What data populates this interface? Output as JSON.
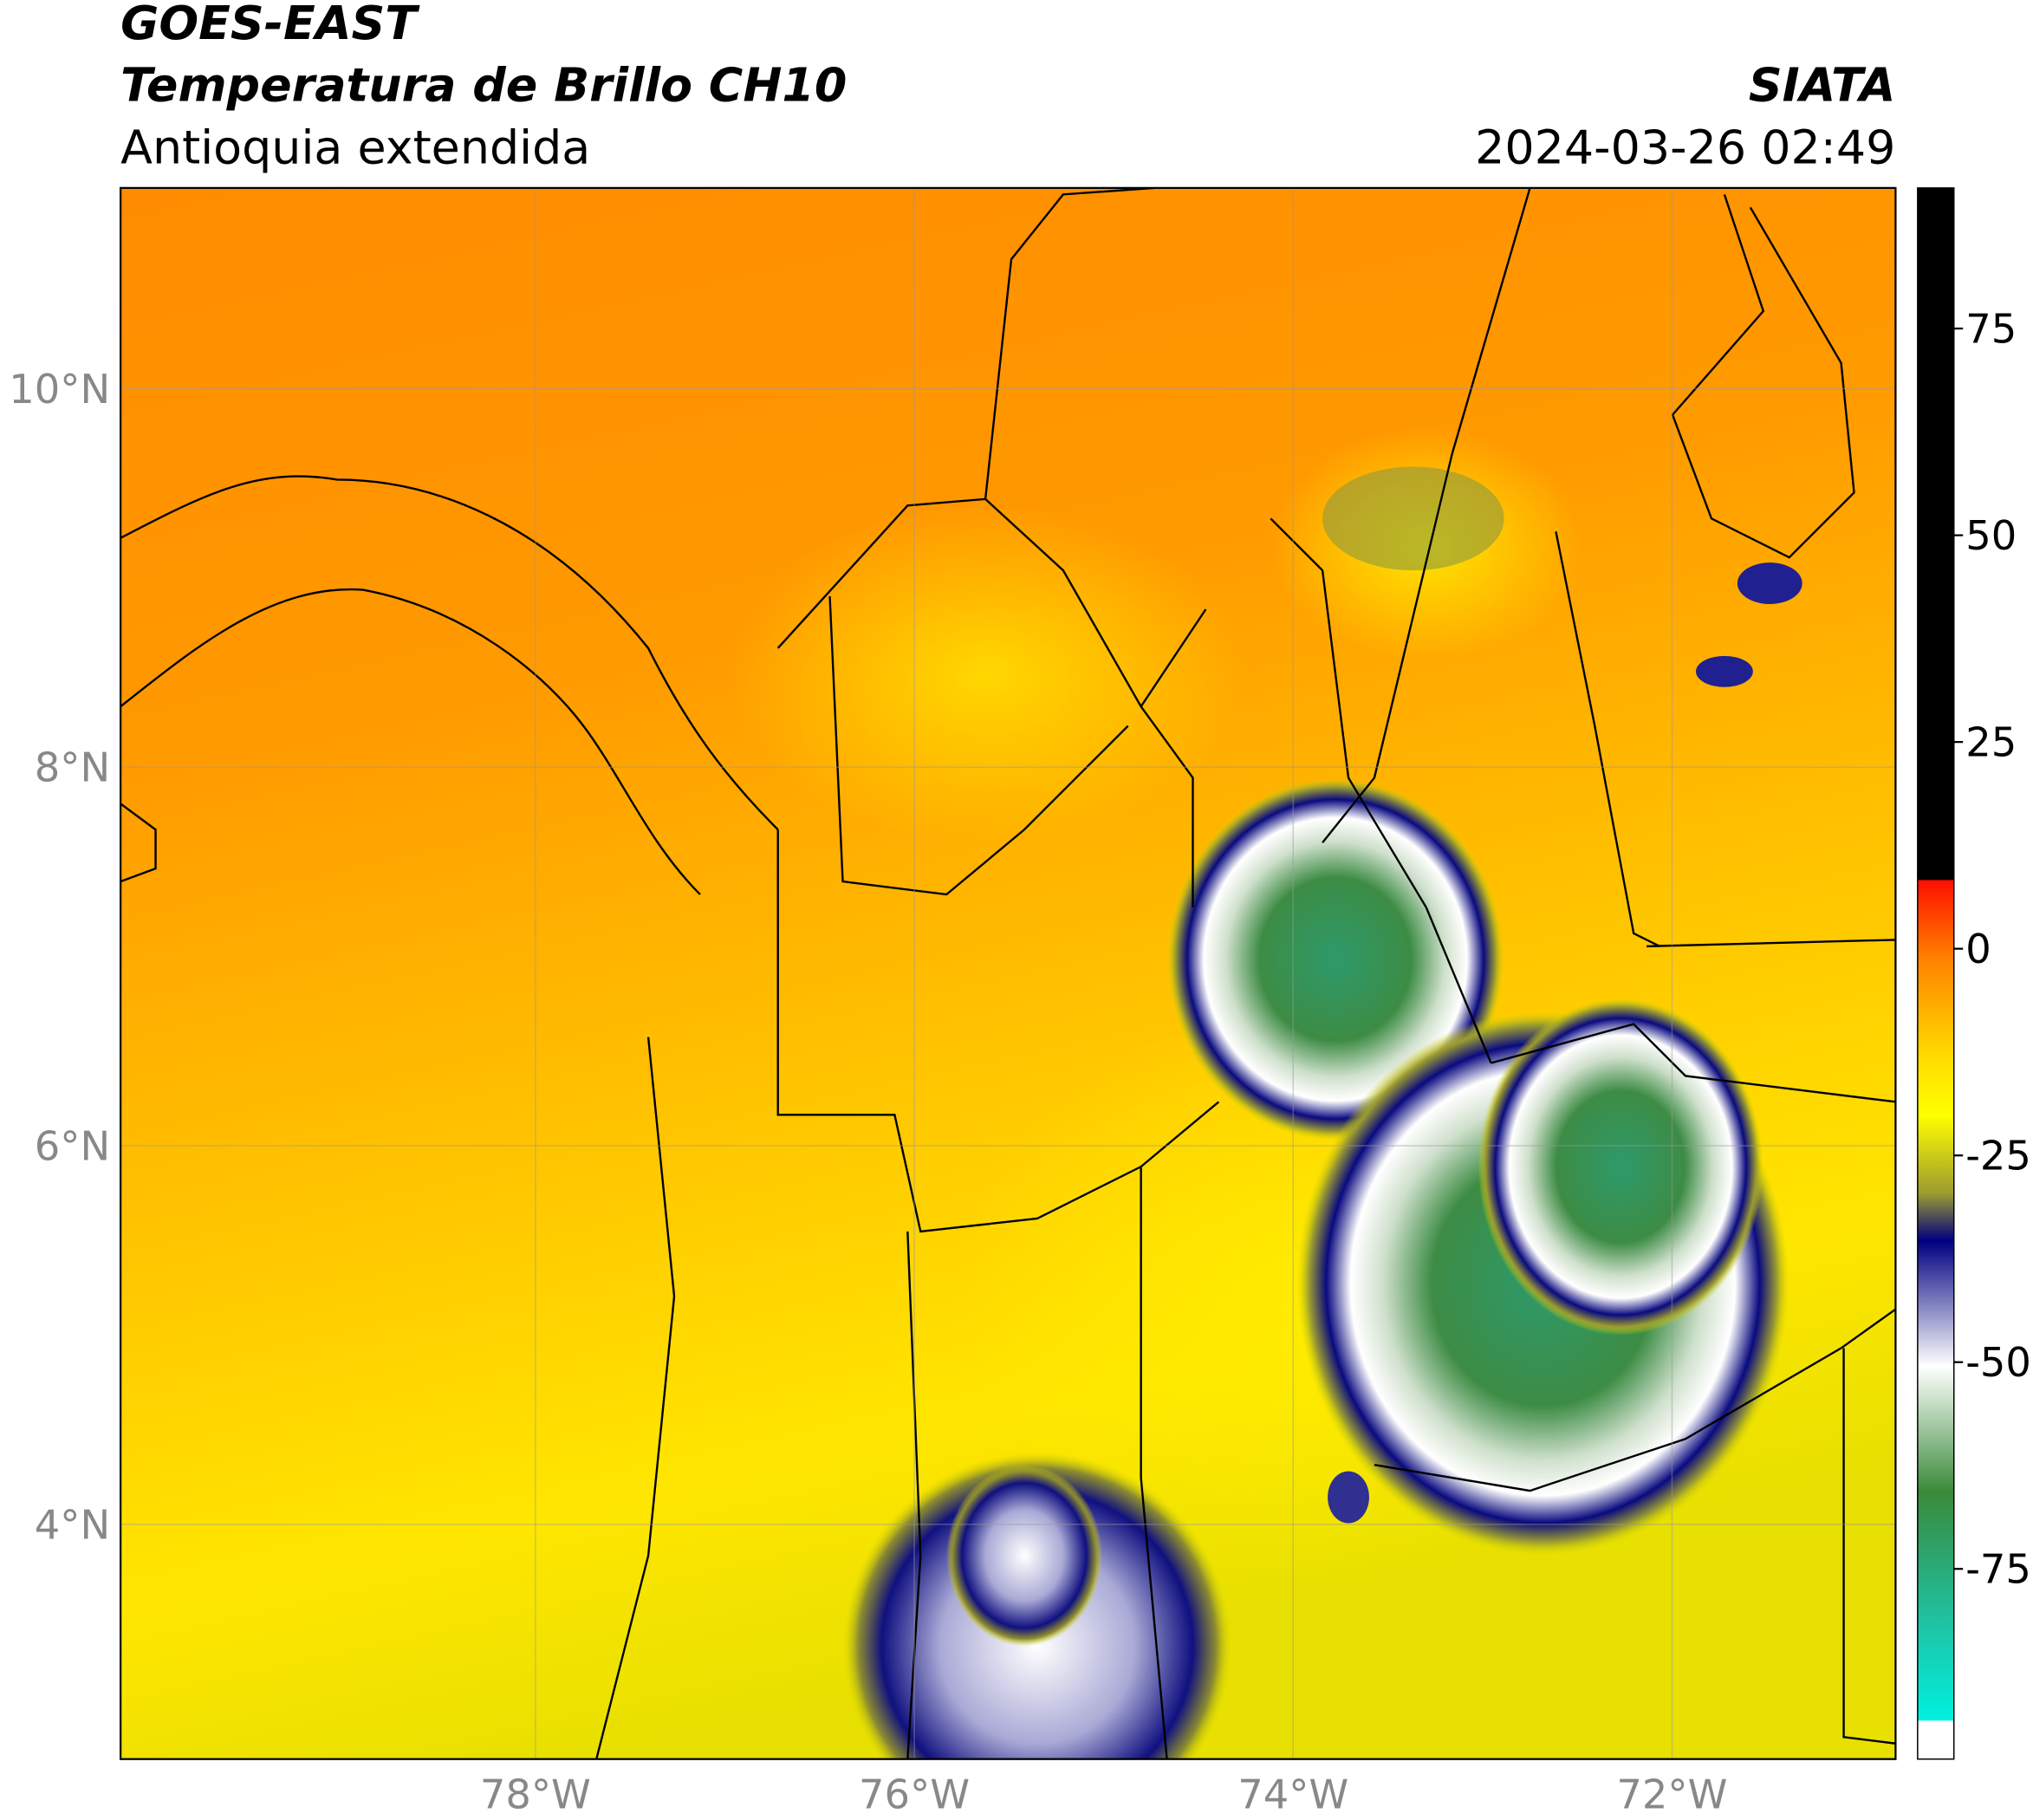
{
  "header": {
    "title": "GOES-EAST",
    "product": "Temperatura de Brillo CH10",
    "region": "Antioquia extendida",
    "source": "SIATA",
    "datetime": "2024-03-26 02:49"
  },
  "map": {
    "xlim": [
      -80.19,
      -70.82
    ],
    "ylim": [
      2.76,
      11.06
    ],
    "xticks": [
      {
        "value": -78,
        "label": "78°W"
      },
      {
        "value": -76,
        "label": "76°W"
      },
      {
        "value": -74,
        "label": "74°W"
      },
      {
        "value": -72,
        "label": "72°W"
      }
    ],
    "yticks": [
      {
        "value": 10,
        "label": "10°N"
      },
      {
        "value": 8,
        "label": "8°N"
      },
      {
        "value": 6,
        "label": "6°N"
      },
      {
        "value": 4,
        "label": "4°N"
      }
    ],
    "grid": true
  },
  "colorbar": {
    "lim": [
      -98,
      92
    ],
    "ticks": [
      75,
      50,
      25,
      0,
      -25,
      -50,
      -75
    ]
  }
}
